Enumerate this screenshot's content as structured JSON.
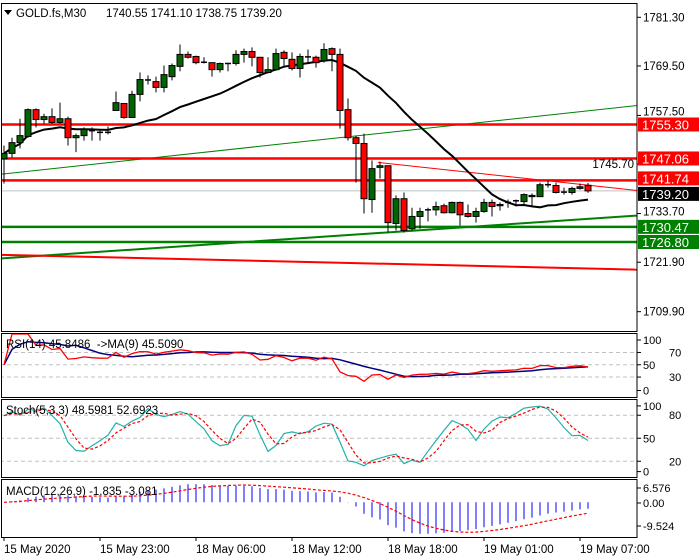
{
  "header": {
    "symbol": "GOLD.fs,M30",
    "ohlc_text": "1740.55 1741.10 1738.75 1739.20"
  },
  "colors": {
    "bull": "#006400",
    "bear": "#ff0000",
    "ma_line": "#000000",
    "bid_line": "#c0c0c0",
    "rsi": "#ff0000",
    "rsi_ma": "#000080",
    "stoch_main": "#20b2aa",
    "stoch_signal": "#ff0000",
    "macd_hist": "#0000ff",
    "macd_signal": "#ff0000"
  },
  "chart_data": {
    "type": "candlestick",
    "timeframe": "M30",
    "ylim": [
      1707.5,
      1783.0
    ],
    "price_ticks": [
      "1781.30",
      "1769.50",
      "1757.50",
      "1745.70",
      "1733.70",
      "1721.90",
      "1709.90"
    ],
    "time_labels": [
      {
        "bar": 0,
        "text": "15 May 2020"
      },
      {
        "bar": 12,
        "text": "15 May 23:00"
      },
      {
        "bar": 24,
        "text": "18 May 06:00"
      },
      {
        "bar": 36,
        "text": "18 May 12:00"
      },
      {
        "bar": 48,
        "text": "18 May 18:00"
      },
      {
        "bar": 60,
        "text": "19 May 01:00"
      },
      {
        "bar": 72,
        "text": "19 May 07:00"
      }
    ],
    "ma_period": 20,
    "candles": [
      [
        1747.0,
        1750.2,
        1741.0,
        1748.3
      ],
      [
        1748.3,
        1752.1,
        1747.3,
        1750.9
      ],
      [
        1750.9,
        1756.7,
        1749.5,
        1752.6
      ],
      [
        1752.4,
        1759.2,
        1752.1,
        1758.9
      ],
      [
        1758.9,
        1759.2,
        1754.6,
        1756.5
      ],
      [
        1756.5,
        1757.9,
        1755.5,
        1757.2
      ],
      [
        1757.2,
        1759.2,
        1755.5,
        1755.8
      ],
      [
        1755.8,
        1760.6,
        1755.5,
        1756.7
      ],
      [
        1756.7,
        1757.2,
        1750.2,
        1752.1
      ],
      [
        1752.1,
        1753.1,
        1748.6,
        1752.6
      ],
      [
        1752.6,
        1754.6,
        1751.4,
        1754.1
      ],
      [
        1753.8,
        1754.6,
        1751.4,
        1753.6
      ],
      [
        1753.4,
        1753.8,
        1751.4,
        1753.3
      ],
      [
        1753.3,
        1754.8,
        1752.9,
        1753.4
      ],
      [
        1758.7,
        1763.3,
        1758.7,
        1760.6
      ],
      [
        1760.4,
        1760.4,
        1756.7,
        1757.0
      ],
      [
        1757.0,
        1763.5,
        1757.0,
        1762.6
      ],
      [
        1762.6,
        1767.9,
        1760.9,
        1766.2
      ],
      [
        1766.0,
        1767.2,
        1765.0,
        1766.1
      ],
      [
        1765.7,
        1766.9,
        1763.1,
        1764.3
      ],
      [
        1764.3,
        1769.6,
        1763.1,
        1767.4
      ],
      [
        1766.9,
        1770.1,
        1766.0,
        1769.6
      ],
      [
        1769.4,
        1774.7,
        1768.2,
        1772.3
      ],
      [
        1772.3,
        1773.0,
        1771.3,
        1771.6
      ],
      [
        1771.8,
        1772.0,
        1769.9,
        1770.3
      ],
      [
        1770.4,
        1771.6,
        1770.1,
        1770.2
      ],
      [
        1770.3,
        1770.3,
        1766.9,
        1768.6
      ],
      [
        1768.6,
        1770.3,
        1767.9,
        1770.1
      ],
      [
        1770.1,
        1770.1,
        1768.2,
        1770.0
      ],
      [
        1770.1,
        1773.3,
        1769.6,
        1772.3
      ],
      [
        1772.3,
        1773.7,
        1770.3,
        1773.0
      ],
      [
        1773.0,
        1774.0,
        1769.4,
        1771.6
      ],
      [
        1771.6,
        1771.6,
        1766.7,
        1767.9
      ],
      [
        1767.9,
        1771.6,
        1767.7,
        1768.6
      ],
      [
        1768.6,
        1773.7,
        1768.6,
        1772.5
      ],
      [
        1772.8,
        1773.3,
        1769.1,
        1771.3
      ],
      [
        1771.1,
        1772.8,
        1768.4,
        1768.9
      ],
      [
        1768.9,
        1772.5,
        1766.7,
        1771.8
      ],
      [
        1771.6,
        1773.5,
        1770.3,
        1771.7
      ],
      [
        1771.6,
        1772.0,
        1769.1,
        1770.3
      ],
      [
        1770.8,
        1775.0,
        1770.3,
        1773.5
      ],
      [
        1773.7,
        1774.0,
        1768.2,
        1772.3
      ],
      [
        1772.3,
        1773.7,
        1754.3,
        1758.7
      ],
      [
        1758.9,
        1761.6,
        1751.4,
        1752.1
      ],
      [
        1752.1,
        1752.6,
        1741.2,
        1750.7
      ],
      [
        1750.7,
        1753.1,
        1733.7,
        1737.3
      ],
      [
        1737.1,
        1746.6,
        1733.9,
        1744.6
      ],
      [
        1744.9,
        1746.3,
        1742.2,
        1745.3
      ],
      [
        1745.3,
        1745.3,
        1729.1,
        1731.5
      ],
      [
        1731.3,
        1738.1,
        1729.6,
        1737.3
      ],
      [
        1737.3,
        1738.8,
        1729.1,
        1729.6
      ],
      [
        1730.0,
        1735.1,
        1729.6,
        1733.0
      ],
      [
        1733.0,
        1735.1,
        1730.0,
        1734.2
      ],
      [
        1734.6,
        1735.1,
        1731.8,
        1734.4
      ],
      [
        1734.6,
        1736.6,
        1733.2,
        1735.4
      ],
      [
        1735.6,
        1736.1,
        1733.7,
        1733.9
      ],
      [
        1733.9,
        1736.6,
        1733.7,
        1736.4
      ],
      [
        1736.4,
        1736.6,
        1730.8,
        1733.4
      ],
      [
        1733.7,
        1735.9,
        1732.7,
        1733.0
      ],
      [
        1733.0,
        1735.1,
        1731.5,
        1734.2
      ],
      [
        1734.2,
        1737.3,
        1733.9,
        1736.4
      ],
      [
        1736.4,
        1737.1,
        1733.0,
        1735.4
      ],
      [
        1735.6,
        1736.4,
        1734.4,
        1735.9
      ],
      [
        1736.2,
        1737.1,
        1735.1,
        1736.4
      ],
      [
        1736.6,
        1737.1,
        1735.4,
        1736.8
      ],
      [
        1736.6,
        1738.6,
        1735.9,
        1738.3
      ],
      [
        1737.8,
        1738.6,
        1735.4,
        1738.1
      ],
      [
        1737.8,
        1741.2,
        1737.8,
        1740.7
      ],
      [
        1740.6,
        1741.7,
        1740.0,
        1740.7
      ],
      [
        1740.5,
        1741.2,
        1738.6,
        1738.8
      ],
      [
        1738.9,
        1740.0,
        1738.3,
        1738.8
      ],
      [
        1738.8,
        1740.2,
        1738.3,
        1739.8
      ],
      [
        1739.8,
        1741.0,
        1739.5,
        1740.2
      ],
      [
        1740.55,
        1741.1,
        1738.75,
        1739.2
      ]
    ],
    "levels": [
      {
        "price": 1755.3,
        "label": "1755.30",
        "color": "#ff0000"
      },
      {
        "price": 1747.06,
        "label": "1747.06",
        "color": "#ff0000"
      },
      {
        "price": 1741.74,
        "label": "1741.74",
        "color": "#ff0000"
      },
      {
        "price": 1730.47,
        "label": "1730.47",
        "color": "#008000"
      },
      {
        "price": 1726.8,
        "label": "1726.80",
        "color": "#008000"
      }
    ],
    "bid": {
      "price": 1739.2,
      "label": "1739.20",
      "color": "#000000"
    },
    "trendlines": [
      {
        "name": "green-trendline-upper",
        "from": [
          -0.5,
          1743.2
        ],
        "to": [
          79.1,
          1759.9
        ],
        "color": "#008000",
        "weight": 1
      },
      {
        "name": "green-trendline-lower",
        "from": [
          -0.5,
          1722.8
        ],
        "to": [
          79.1,
          1733.2
        ],
        "color": "#008000",
        "weight": 2
      },
      {
        "name": "red-trendline-lower",
        "from": [
          -0.5,
          1723.7
        ],
        "to": [
          79.1,
          1720.1
        ],
        "color": "#ff0000",
        "weight": 2
      },
      {
        "name": "red-trendline-upper",
        "from": [
          46.75,
          1746.1
        ],
        "to": [
          79.1,
          1739.3
        ],
        "color": "#ff0000",
        "weight": 1
      }
    ],
    "indicators": {
      "rsi": {
        "label": "RSI(14) 45.8486  ->MA(9) 45.5090",
        "period": 14,
        "ma_period": 9,
        "levels": [
          70,
          50,
          30
        ],
        "ticks": [
          "100",
          "70",
          "50",
          "30",
          "0"
        ],
        "ylim": [
          0,
          100
        ]
      },
      "stoch": {
        "label": "Stoch(5,3,3) 48.5981 52.6923",
        "k": 5,
        "d": 3,
        "slowing": 3,
        "levels": [
          80,
          50,
          20
        ],
        "ticks": [
          "100",
          "80",
          "50",
          "20",
          "0"
        ],
        "ylim": [
          0,
          100
        ]
      },
      "macd": {
        "label": "MACD(12,26,9) -1.835 -3.081",
        "fast": 12,
        "slow": 26,
        "signal": 9,
        "ticks": [
          "6.576",
          "0.00",
          "-9.524"
        ],
        "ylim": [
          -9.524,
          6.576
        ]
      }
    }
  }
}
